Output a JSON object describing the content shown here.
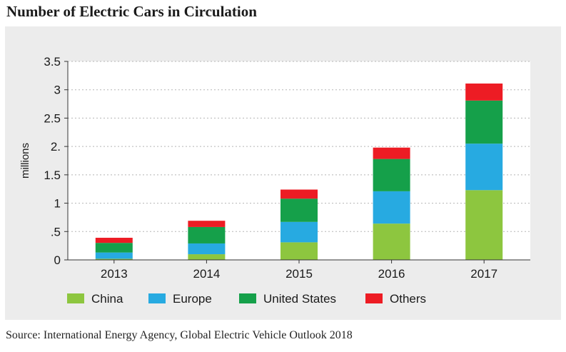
{
  "title": "Number of Electric Cars in Circulation",
  "source": "Source: International Energy Agency, Global Electric Vehicle Outlook 2018",
  "chart_data": {
    "type": "bar",
    "stacked": true,
    "categories": [
      "2013",
      "2014",
      "2015",
      "2016",
      "2017"
    ],
    "ylabel": "millions",
    "xlabel": "",
    "ylim": [
      0,
      3.5
    ],
    "yticks": [
      "0",
      ".5",
      "1",
      "1.5",
      "2.",
      "2.5",
      "3",
      "3.5"
    ],
    "ytick_values": [
      0,
      0.5,
      1,
      1.5,
      2,
      2.5,
      3,
      3.5
    ],
    "grid": true,
    "legend_position": "bottom",
    "series": [
      {
        "name": "China",
        "color": "#8dc63f",
        "values": [
          0.02,
          0.1,
          0.31,
          0.64,
          1.23
        ]
      },
      {
        "name": "Europe",
        "color": "#27aae1",
        "values": [
          0.11,
          0.19,
          0.36,
          0.57,
          0.82
        ]
      },
      {
        "name": "United States",
        "color": "#15a04a",
        "values": [
          0.17,
          0.29,
          0.41,
          0.57,
          0.76
        ]
      },
      {
        "name": "Others",
        "color": "#ed1c24",
        "values": [
          0.09,
          0.11,
          0.16,
          0.2,
          0.3
        ]
      }
    ]
  }
}
